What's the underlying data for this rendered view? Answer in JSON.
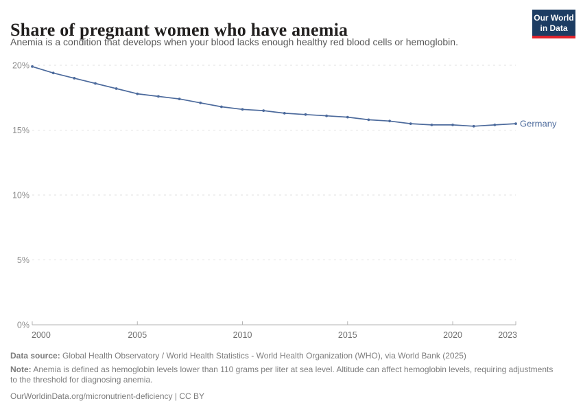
{
  "header": {
    "title": "Share of pregnant women who have anemia",
    "subtitle": "Anemia is a condition that develops when your blood lacks enough healthy red blood cells or hemoglobin.",
    "logo": {
      "line1": "Our World",
      "line2": "in Data",
      "bg_color": "#1d3d63",
      "accent_color": "#e0232c"
    }
  },
  "chart_data": {
    "type": "line",
    "title": "Share of pregnant women who have anemia",
    "xlabel": "",
    "ylabel": "",
    "xlim": [
      2000,
      2023
    ],
    "ylim": [
      0,
      20
    ],
    "x_ticks": [
      2000,
      2005,
      2010,
      2015,
      2020,
      2023
    ],
    "y_ticks": [
      0,
      5,
      10,
      15,
      20
    ],
    "y_tick_suffix": "%",
    "grid": "horizontal-dashed",
    "legend_position": "end-of-line-label",
    "series": [
      {
        "name": "Germany",
        "color": "#4C6A9C",
        "x": [
          2000,
          2001,
          2002,
          2003,
          2004,
          2005,
          2006,
          2007,
          2008,
          2009,
          2010,
          2011,
          2012,
          2013,
          2014,
          2015,
          2016,
          2017,
          2018,
          2019,
          2020,
          2021,
          2022,
          2023
        ],
        "values": [
          19.9,
          19.4,
          19.0,
          18.6,
          18.2,
          17.8,
          17.6,
          17.4,
          17.1,
          16.8,
          16.6,
          16.5,
          16.3,
          16.2,
          16.1,
          16.0,
          15.8,
          15.7,
          15.5,
          15.4,
          15.4,
          15.3,
          15.4,
          15.5
        ]
      }
    ]
  },
  "footer": {
    "source_label": "Data source:",
    "source_text": " Global Health Observatory / World Health Statistics - World Health Organization (WHO), via World Bank (2025)",
    "note_label": "Note:",
    "note_text": " Anemia is defined as hemoglobin levels lower than 110 grams per liter at sea level. Altitude can affect hemoglobin levels, requiring adjustments to the threshold for diagnosing anemia.",
    "url_text": "OurWorldinData.org/micronutrient-deficiency | CC BY"
  }
}
